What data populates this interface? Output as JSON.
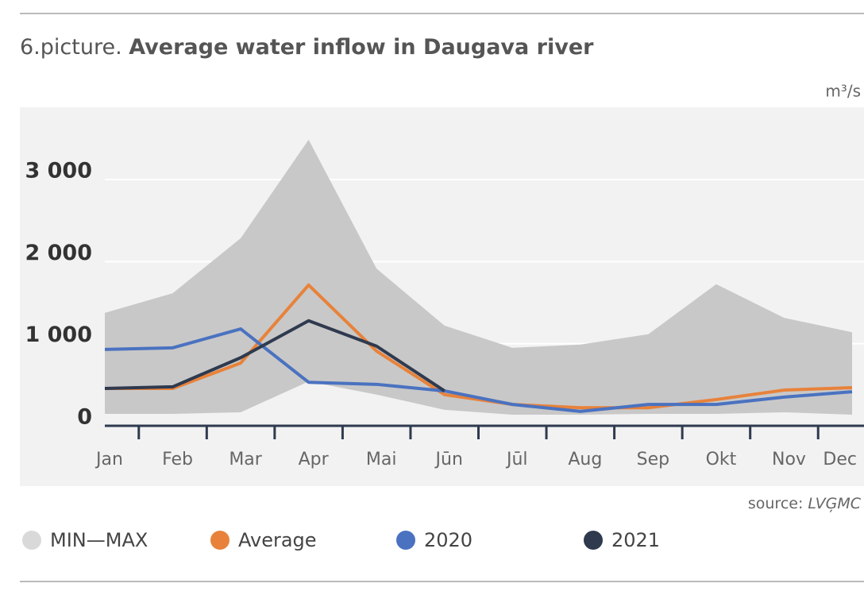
{
  "chart_data": {
    "type": "line",
    "title_prefix": "6.picture.",
    "title": "Average water inflow in Daugava river",
    "unit": "m³/s",
    "source_label": "source:",
    "source": "LVĢMC",
    "categories": [
      "Jan",
      "Feb",
      "Mar",
      "Apr",
      "Mai",
      "Jūn",
      "Jūl",
      "Aug",
      "Sep",
      "Okt",
      "Nov",
      "Dec"
    ],
    "band": {
      "name": "MIN—MAX",
      "color": "#c8c8c8",
      "high": [
        1375,
        1615,
        2285,
        3485,
        1915,
        1220,
        950,
        990,
        1115,
        1725,
        1315,
        1140
      ],
      "low": [
        145,
        145,
        165,
        540,
        380,
        195,
        135,
        135,
        145,
        145,
        165,
        135
      ]
    },
    "series": [
      {
        "name": "Average",
        "color": "#e8823a",
        "values": [
          455,
          455,
          765,
          1715,
          910,
          380,
          260,
          220,
          220,
          320,
          435,
          465
        ]
      },
      {
        "name": "2020",
        "color": "#4a72c0",
        "values": [
          930,
          950,
          1180,
          530,
          505,
          425,
          260,
          175,
          260,
          260,
          350,
          415
        ]
      },
      {
        "name": "2021",
        "color": "#2f3a4f",
        "values": [
          455,
          475,
          830,
          1280,
          970,
          425,
          null,
          null,
          null,
          null,
          null,
          null
        ]
      }
    ],
    "ylim": [
      0,
      3900
    ],
    "yticks": [
      {
        "value": 0,
        "label": "0"
      },
      {
        "value": 1000,
        "label": "1 000"
      },
      {
        "value": 2000,
        "label": "2 000"
      },
      {
        "value": 3000,
        "label": "3 000"
      }
    ],
    "grid": true
  }
}
